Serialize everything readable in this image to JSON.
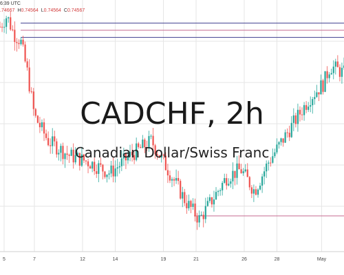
{
  "header": {
    "time": "6:39 UTC",
    "ohlc": {
      "open": ".74667",
      "high_label": "H",
      "high": "0.74564",
      "low_label": "L",
      "low": "0.74564",
      "close_label": "C",
      "close": "0.74567"
    }
  },
  "watermark": {
    "symbol": "CADCHF, 2h",
    "description": "Canadian Dollar/Swiss Franc"
  },
  "colors": {
    "up": "#26a69a",
    "down": "#ef5350",
    "hline_navy": "#3f3f8f",
    "hline_pink": "#c56a8f",
    "grid": "#e6e6e6"
  },
  "chart_data": {
    "type": "candlestick",
    "x_ticks": [
      "5",
      "7",
      "12",
      "14",
      "19",
      "21",
      "26",
      "28",
      "May"
    ],
    "y_range": [
      0.7405,
      0.7472
    ],
    "horizontal_levels": [
      {
        "price": 0.7469,
        "color": "#3f3f8f"
      },
      {
        "price": 0.7467,
        "color": "#c56a8f"
      },
      {
        "price": 0.7465,
        "color": "#3f3f8f"
      },
      {
        "price": 0.7415,
        "color": "#c56a8f"
      }
    ],
    "series": [
      {
        "x": 0,
        "close": 0.7468
      },
      {
        "x": 2,
        "close": 0.7471
      },
      {
        "x": 4,
        "close": 0.7466
      },
      {
        "x": 6,
        "close": 0.7464
      },
      {
        "x": 8,
        "close": 0.7455
      },
      {
        "x": 10,
        "close": 0.7443
      },
      {
        "x": 14,
        "close": 0.7436
      },
      {
        "x": 20,
        "close": 0.7432
      },
      {
        "x": 26,
        "close": 0.743
      },
      {
        "x": 32,
        "close": 0.7427
      },
      {
        "x": 38,
        "close": 0.7432
      },
      {
        "x": 44,
        "close": 0.7436
      },
      {
        "x": 50,
        "close": 0.7426
      },
      {
        "x": 54,
        "close": 0.7419
      },
      {
        "x": 58,
        "close": 0.7414
      },
      {
        "x": 62,
        "close": 0.742
      },
      {
        "x": 66,
        "close": 0.7426
      },
      {
        "x": 70,
        "close": 0.7428
      },
      {
        "x": 74,
        "close": 0.7422
      },
      {
        "x": 78,
        "close": 0.743
      },
      {
        "x": 82,
        "close": 0.7436
      },
      {
        "x": 86,
        "close": 0.7442
      },
      {
        "x": 90,
        "close": 0.7448
      },
      {
        "x": 94,
        "close": 0.7452
      },
      {
        "x": 96,
        "close": 0.7457
      },
      {
        "x": 100,
        "close": 0.7455
      }
    ]
  }
}
